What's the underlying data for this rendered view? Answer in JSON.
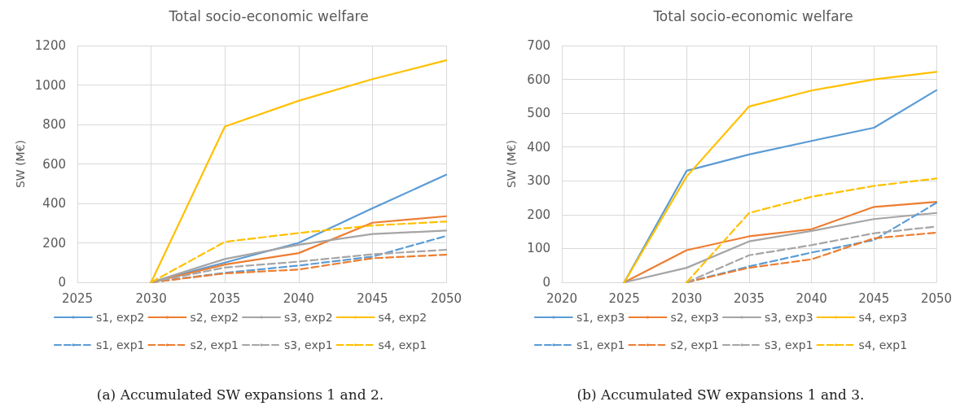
{
  "chart_data": [
    {
      "type": "line",
      "title": "Total socio-economic welfare",
      "ylabel": "SW (M€)",
      "xlim": [
        2025,
        2050
      ],
      "xticks": [
        2025,
        2030,
        2035,
        2040,
        2045,
        2050
      ],
      "ylim": [
        0,
        1200
      ],
      "yticks": [
        0,
        200,
        400,
        600,
        800,
        1000,
        1200
      ],
      "grid": true,
      "legend": "bottom",
      "marker": "none",
      "annotations": [
        "(a) Accumulated SW expansions 1 and 2."
      ],
      "x": [
        2030,
        2035,
        2040,
        2045,
        2050
      ],
      "series": [
        {
          "name": "s1, exp2",
          "color": "#5b9bd5",
          "line_style": "solid",
          "values": [
            0,
            100,
            200,
            375,
            545
          ]
        },
        {
          "name": "s2, exp2",
          "color": "#ed7d31",
          "line_style": "solid",
          "values": [
            0,
            90,
            148,
            302,
            335
          ]
        },
        {
          "name": "s3, exp2",
          "color": "#a5a5a5",
          "line_style": "solid",
          "values": [
            0,
            118,
            190,
            245,
            262
          ]
        },
        {
          "name": "s4, exp2",
          "color": "#ffc000",
          "line_style": "solid",
          "values": [
            0,
            790,
            920,
            1030,
            1125
          ]
        },
        {
          "name": "s1, exp1",
          "color": "#5b9bd5",
          "line_style": "dashed",
          "values": [
            0,
            48,
            85,
            130,
            235
          ]
        },
        {
          "name": "s2, exp1",
          "color": "#ed7d31",
          "line_style": "dashed",
          "values": [
            0,
            45,
            65,
            122,
            140
          ]
        },
        {
          "name": "s3, exp1",
          "color": "#a5a5a5",
          "line_style": "dashed",
          "values": [
            0,
            75,
            105,
            142,
            165
          ]
        },
        {
          "name": "s4, exp1",
          "color": "#ffc000",
          "line_style": "dashed",
          "values": [
            0,
            205,
            250,
            288,
            308
          ]
        }
      ]
    },
    {
      "type": "line",
      "title": "Total socio-economic welfare",
      "ylabel": "SW (M€)",
      "xlim": [
        2020,
        2050
      ],
      "xticks": [
        2020,
        2025,
        2030,
        2035,
        2040,
        2045,
        2050
      ],
      "ylim": [
        0,
        700
      ],
      "yticks": [
        0,
        100,
        200,
        300,
        400,
        500,
        600,
        700
      ],
      "grid": true,
      "legend": "bottom",
      "marker": "none",
      "annotations": [
        "(b) Accumulated SW expansions 1 and 3."
      ],
      "x": [
        2025,
        2030,
        2035,
        2040,
        2045,
        2050
      ],
      "series": [
        {
          "name": "s1, exp3",
          "color": "#5b9bd5",
          "line_style": "solid",
          "values": [
            0,
            330,
            378,
            418,
            457,
            568
          ]
        },
        {
          "name": "s2, exp3",
          "color": "#ed7d31",
          "line_style": "solid",
          "values": [
            0,
            95,
            136,
            157,
            223,
            238
          ]
        },
        {
          "name": "s3, exp3",
          "color": "#a5a5a5",
          "line_style": "solid",
          "values": [
            0,
            43,
            121,
            152,
            187,
            205
          ]
        },
        {
          "name": "s4, exp3",
          "color": "#ffc000",
          "line_style": "solid",
          "values": [
            0,
            313,
            520,
            567,
            600,
            622
          ]
        },
        {
          "name": "s1, exp1",
          "color": "#5b9bd5",
          "line_style": "dashed",
          "x": [
            2030,
            2035,
            2040,
            2045,
            2050
          ],
          "values": [
            0,
            47,
            88,
            125,
            235
          ]
        },
        {
          "name": "s2, exp1",
          "color": "#ed7d31",
          "line_style": "dashed",
          "x": [
            2030,
            2035,
            2040,
            2045,
            2050
          ],
          "values": [
            0,
            43,
            68,
            130,
            147
          ]
        },
        {
          "name": "s3, exp1",
          "color": "#a5a5a5",
          "line_style": "dashed",
          "x": [
            2030,
            2035,
            2040,
            2045,
            2050
          ],
          "values": [
            0,
            80,
            110,
            145,
            165
          ]
        },
        {
          "name": "s4, exp1",
          "color": "#ffc000",
          "line_style": "dashed",
          "x": [
            2030,
            2035,
            2040,
            2045,
            2050
          ],
          "values": [
            0,
            205,
            253,
            285,
            307
          ]
        }
      ]
    }
  ]
}
